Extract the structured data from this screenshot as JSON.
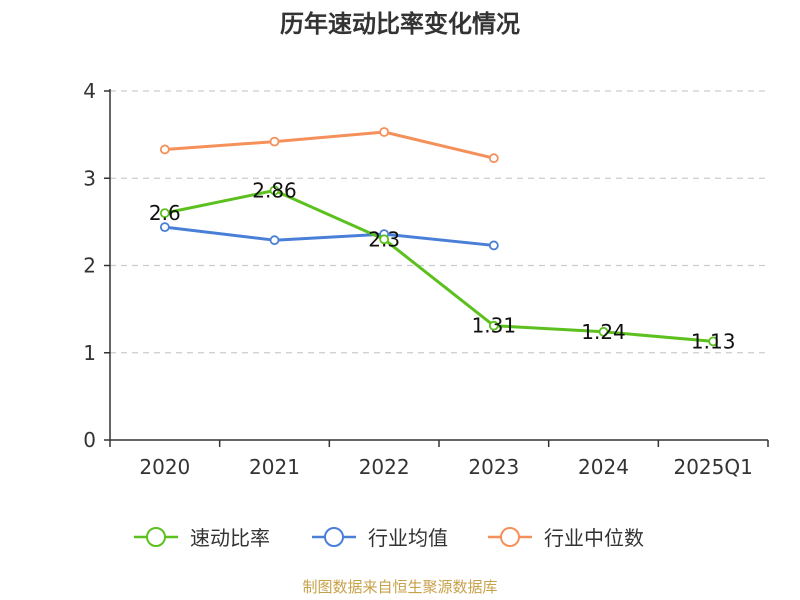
{
  "chart_data": {
    "type": "line",
    "title": "历年速动比率变化情况",
    "categories": [
      "2020",
      "2021",
      "2022",
      "2023",
      "2024",
      "2025Q1"
    ],
    "ylim": [
      0,
      4
    ],
    "yticks": [
      "0",
      "1",
      "2",
      "3",
      "4"
    ],
    "grid": true,
    "legend_position": "bottom",
    "series": [
      {
        "name": "速动比率",
        "color": "#5cc11e",
        "values": [
          2.6,
          2.86,
          2.3,
          1.31,
          1.24,
          1.13
        ],
        "labels": [
          "2.6",
          "2.86",
          "2.3",
          "1.31",
          "1.24",
          "1.13"
        ]
      },
      {
        "name": "行业均值",
        "color": "#4a7fd8",
        "values": [
          2.44,
          2.29,
          2.36,
          2.23,
          null,
          null
        ]
      },
      {
        "name": "行业中位数",
        "color": "#f5905a",
        "values": [
          3.33,
          3.42,
          3.53,
          3.23,
          null,
          null
        ]
      }
    ]
  },
  "source": "制图数据来自恒生聚源数据库",
  "colors": {
    "axis": "#333333",
    "grid": "#cccccc",
    "source": "#c8a24a"
  }
}
